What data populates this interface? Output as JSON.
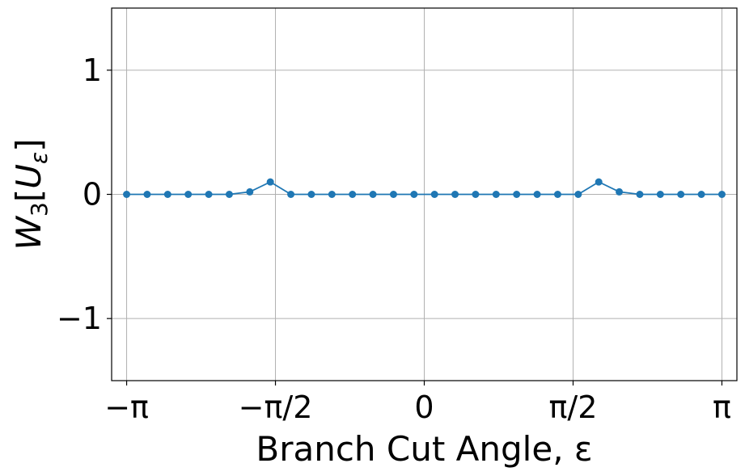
{
  "chart_data": {
    "type": "line",
    "title": "",
    "xlabel": "Branch Cut Angle, ε",
    "ylabel_main": "W",
    "ylabel_sub": "3",
    "ylabel_bracket_open": "[",
    "ylabel_inner_main": "U",
    "ylabel_inner_sub": "ε",
    "ylabel_bracket_close": "]",
    "xlim": [
      -3.3,
      3.3
    ],
    "ylim": [
      -1.5,
      1.5
    ],
    "grid": true,
    "x_ticks": [
      {
        "value": -3.14159,
        "label": "−π"
      },
      {
        "value": -1.5708,
        "label": "−π/2"
      },
      {
        "value": 0,
        "label": "0"
      },
      {
        "value": 1.5708,
        "label": "π/2"
      },
      {
        "value": 3.14159,
        "label": "π"
      }
    ],
    "y_ticks": [
      {
        "value": 1,
        "label": "1"
      },
      {
        "value": 0,
        "label": "0"
      },
      {
        "value": -1,
        "label": "−1"
      }
    ],
    "series_color": "#1f77b4",
    "series": [
      {
        "x": [
          -3.1416,
          -2.9249,
          -2.7082,
          -2.4916,
          -2.2749,
          -2.0582,
          -1.8416,
          -1.6249,
          -1.4082,
          -1.1916,
          -0.9749,
          -0.7582,
          -0.5416,
          -0.3249,
          -0.1083,
          0.1083,
          0.3249,
          0.5416,
          0.7582,
          0.9749,
          1.1916,
          1.4082,
          1.6249,
          1.8416,
          2.0582,
          2.2749,
          2.4916,
          2.7082,
          2.9249,
          3.1416
        ],
        "y": [
          0,
          0,
          0,
          0,
          0,
          0,
          0.02,
          0.1,
          0,
          0,
          0,
          0,
          0,
          0,
          0,
          0,
          0,
          0,
          0,
          0,
          0,
          0,
          0,
          0.1,
          0.02,
          0,
          0,
          0,
          0,
          0
        ]
      }
    ]
  }
}
